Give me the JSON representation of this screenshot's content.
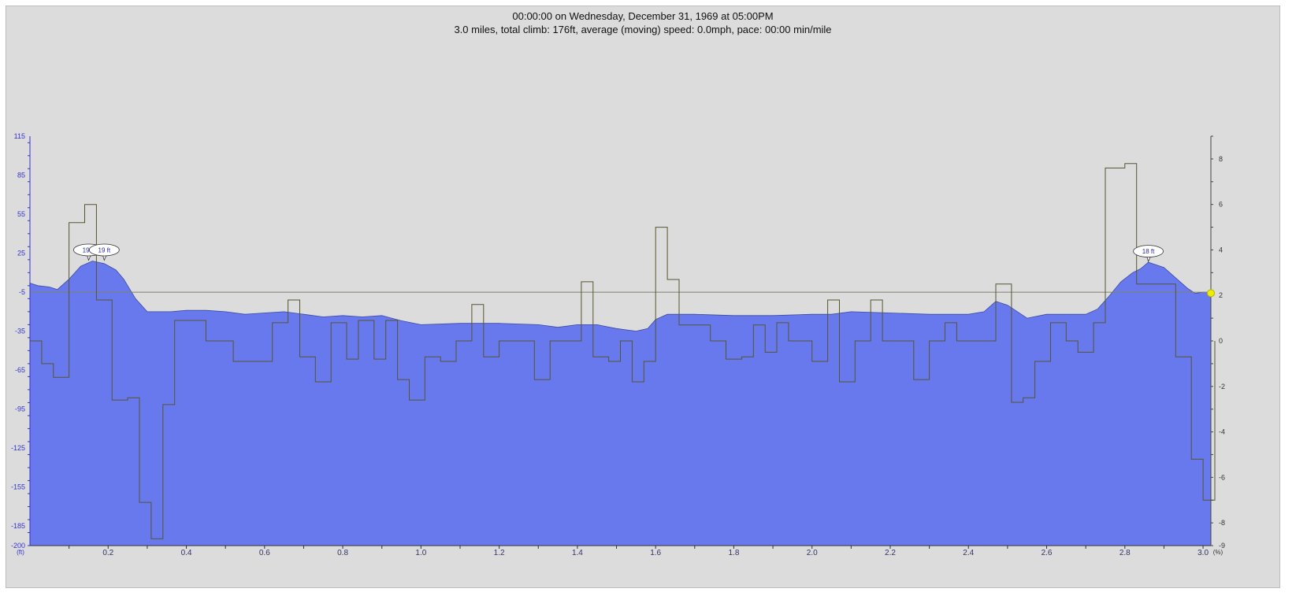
{
  "header": {
    "line1": "00:00:00 on Wednesday, December 31, 1969 at 05:00PM",
    "line2": "3.0 miles, total climb: 176ft, average (moving) speed: 0.0mph, pace: 00:00 min/mile"
  },
  "chart_data": {
    "type": "area",
    "title": "",
    "grid": false,
    "x_ticks": [
      "0.2",
      "0.4",
      "0.6",
      "0.8",
      "1.0",
      "1.2",
      "1.4",
      "1.6",
      "1.8",
      "2.0",
      "2.2",
      "2.4",
      "2.6",
      "2.8",
      "3.0"
    ],
    "x_tick_values": [
      0.2,
      0.4,
      0.6,
      0.8,
      1.0,
      1.2,
      1.4,
      1.6,
      1.8,
      2.0,
      2.2,
      2.4,
      2.6,
      2.8,
      3.0
    ],
    "xlim": [
      0,
      3.02
    ],
    "left_axis": {
      "unit": "(ft)",
      "ylim": [
        -200,
        115
      ],
      "ticks": [
        "115",
        "85",
        "55",
        "25",
        "-5",
        "-35",
        "-65",
        "-95",
        "-125",
        "-155",
        "-185",
        "-200"
      ],
      "tick_values": [
        115,
        85,
        55,
        25,
        -5,
        -35,
        -65,
        -95,
        -125,
        -155,
        -185,
        -200
      ]
    },
    "right_axis": {
      "unit": "(%)",
      "ylim": [
        -9,
        9
      ],
      "ticks": [
        "8",
        "6",
        "4",
        "2",
        "0",
        "-2",
        "-4",
        "-6",
        "-8",
        "-9"
      ],
      "tick_values": [
        8,
        6,
        4,
        2,
        0,
        -2,
        -4,
        -6,
        -8,
        -9
      ]
    },
    "reference_line_y": -5,
    "series": [
      {
        "kind": "elevation",
        "color": "#6879ee",
        "points": [
          [
            0,
            2
          ],
          [
            0.02,
            0
          ],
          [
            0.05,
            -1
          ],
          [
            0.07,
            -3
          ],
          [
            0.1,
            5
          ],
          [
            0.13,
            15
          ],
          [
            0.16,
            19
          ],
          [
            0.19,
            17
          ],
          [
            0.22,
            12
          ],
          [
            0.24,
            5
          ],
          [
            0.27,
            -10
          ],
          [
            0.3,
            -20
          ],
          [
            0.33,
            -20
          ],
          [
            0.36,
            -20
          ],
          [
            0.4,
            -19
          ],
          [
            0.45,
            -19
          ],
          [
            0.5,
            -20
          ],
          [
            0.55,
            -22
          ],
          [
            0.6,
            -21
          ],
          [
            0.65,
            -20
          ],
          [
            0.7,
            -22
          ],
          [
            0.75,
            -24
          ],
          [
            0.8,
            -23
          ],
          [
            0.85,
            -24
          ],
          [
            0.9,
            -23
          ],
          [
            0.95,
            -27
          ],
          [
            1.0,
            -30
          ],
          [
            1.1,
            -29
          ],
          [
            1.2,
            -29
          ],
          [
            1.3,
            -30
          ],
          [
            1.35,
            -32
          ],
          [
            1.4,
            -30
          ],
          [
            1.45,
            -30
          ],
          [
            1.5,
            -33
          ],
          [
            1.55,
            -35
          ],
          [
            1.58,
            -33
          ],
          [
            1.6,
            -26
          ],
          [
            1.63,
            -22
          ],
          [
            1.7,
            -22
          ],
          [
            1.8,
            -23
          ],
          [
            1.9,
            -23
          ],
          [
            2.0,
            -22
          ],
          [
            2.05,
            -22
          ],
          [
            2.1,
            -20
          ],
          [
            2.2,
            -21
          ],
          [
            2.3,
            -22
          ],
          [
            2.4,
            -22
          ],
          [
            2.44,
            -20
          ],
          [
            2.47,
            -12
          ],
          [
            2.5,
            -15
          ],
          [
            2.55,
            -25
          ],
          [
            2.6,
            -22
          ],
          [
            2.7,
            -22
          ],
          [
            2.73,
            -18
          ],
          [
            2.76,
            -8
          ],
          [
            2.79,
            3
          ],
          [
            2.82,
            10
          ],
          [
            2.84,
            13
          ],
          [
            2.86,
            18
          ],
          [
            2.9,
            14
          ],
          [
            2.93,
            6
          ],
          [
            2.96,
            -2
          ],
          [
            2.98,
            -6
          ],
          [
            3.0,
            -5
          ],
          [
            3.02,
            -5
          ]
        ]
      },
      {
        "kind": "grade",
        "color": "#555530",
        "steps": [
          [
            0,
            0
          ],
          [
            0.03,
            -1
          ],
          [
            0.06,
            -1.6
          ],
          [
            0.1,
            5.2
          ],
          [
            0.14,
            6
          ],
          [
            0.17,
            1.8
          ],
          [
            0.21,
            -2.6
          ],
          [
            0.25,
            -2.5
          ],
          [
            0.28,
            -7.1
          ],
          [
            0.31,
            -8.7
          ],
          [
            0.34,
            -2.8
          ],
          [
            0.37,
            0.9
          ],
          [
            0.45,
            0
          ],
          [
            0.52,
            -0.9
          ],
          [
            0.62,
            0.8
          ],
          [
            0.66,
            1.8
          ],
          [
            0.69,
            -0.7
          ],
          [
            0.73,
            -1.8
          ],
          [
            0.77,
            0.8
          ],
          [
            0.81,
            -0.8
          ],
          [
            0.84,
            0.9
          ],
          [
            0.88,
            -0.8
          ],
          [
            0.91,
            0.9
          ],
          [
            0.94,
            -1.7
          ],
          [
            0.97,
            -2.6
          ],
          [
            1.01,
            -0.7
          ],
          [
            1.05,
            -0.9
          ],
          [
            1.09,
            0
          ],
          [
            1.13,
            1.6
          ],
          [
            1.16,
            -0.7
          ],
          [
            1.2,
            0
          ],
          [
            1.29,
            -1.7
          ],
          [
            1.33,
            0
          ],
          [
            1.41,
            2.6
          ],
          [
            1.44,
            -0.7
          ],
          [
            1.48,
            -0.9
          ],
          [
            1.51,
            0
          ],
          [
            1.54,
            -1.8
          ],
          [
            1.57,
            -0.9
          ],
          [
            1.6,
            5
          ],
          [
            1.63,
            2.7
          ],
          [
            1.66,
            0.7
          ],
          [
            1.74,
            0
          ],
          [
            1.78,
            -0.8
          ],
          [
            1.82,
            -0.7
          ],
          [
            1.85,
            0.7
          ],
          [
            1.88,
            -0.5
          ],
          [
            1.91,
            0.8
          ],
          [
            1.94,
            0
          ],
          [
            2.0,
            -0.9
          ],
          [
            2.04,
            1.8
          ],
          [
            2.07,
            -1.8
          ],
          [
            2.11,
            0
          ],
          [
            2.15,
            1.8
          ],
          [
            2.18,
            0
          ],
          [
            2.26,
            -1.7
          ],
          [
            2.3,
            0
          ],
          [
            2.34,
            0.8
          ],
          [
            2.37,
            0
          ],
          [
            2.47,
            2.5
          ],
          [
            2.51,
            -2.7
          ],
          [
            2.54,
            -2.5
          ],
          [
            2.57,
            -0.9
          ],
          [
            2.61,
            0.8
          ],
          [
            2.65,
            0
          ],
          [
            2.68,
            -0.5
          ],
          [
            2.72,
            0.8
          ],
          [
            2.75,
            7.6
          ],
          [
            2.8,
            7.8
          ],
          [
            2.83,
            2.5
          ],
          [
            2.87,
            2.5
          ],
          [
            2.91,
            2.5
          ],
          [
            2.93,
            -0.7
          ],
          [
            2.97,
            -5.2
          ],
          [
            3.0,
            -7
          ],
          [
            3.03,
            0
          ]
        ]
      }
    ],
    "annotations": [
      {
        "label": "19 ft",
        "x": 0.15,
        "y": 19
      },
      {
        "label": "19 ft",
        "x": 0.19,
        "y": 19
      },
      {
        "label": "18 ft",
        "x": 2.86,
        "y": 18
      }
    ],
    "marker": {
      "x": 3.02,
      "y_percent": 2.1,
      "color": "#f0ee00"
    }
  }
}
